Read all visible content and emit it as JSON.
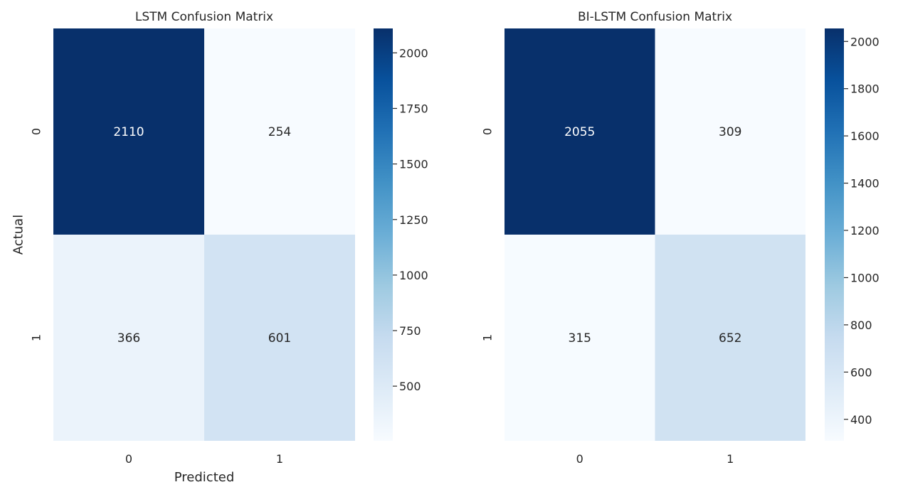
{
  "chart_data": [
    {
      "type": "heatmap",
      "title": "LSTM Confusion Matrix",
      "xlabel": "Predicted",
      "ylabel": "Actual",
      "x_categories": [
        "0",
        "1"
      ],
      "y_categories": [
        "0",
        "1"
      ],
      "values": [
        [
          2110,
          254
        ],
        [
          366,
          601
        ]
      ],
      "annotations": [
        "2110",
        "254",
        "366",
        "601"
      ],
      "colormap": "Blues",
      "colorbar": {
        "ticks": [
          500,
          750,
          1000,
          1250,
          1500,
          1750,
          2000
        ],
        "tick_labels": [
          "500",
          "750",
          "1000",
          "1250",
          "1500",
          "1750",
          "2000"
        ]
      }
    },
    {
      "type": "heatmap",
      "title": "BI-LSTM Confusion Matrix",
      "xlabel": "",
      "ylabel": "",
      "x_categories": [
        "0",
        "1"
      ],
      "y_categories": [
        "0",
        "1"
      ],
      "values": [
        [
          2055,
          309
        ],
        [
          315,
          652
        ]
      ],
      "annotations": [
        "2055",
        "309",
        "315",
        "652"
      ],
      "colormap": "Blues",
      "colorbar": {
        "ticks": [
          400,
          600,
          800,
          1000,
          1200,
          1400,
          1600,
          1800,
          2000
        ],
        "tick_labels": [
          "400",
          "600",
          "800",
          "1000",
          "1200",
          "1400",
          "1600",
          "1800",
          "2000"
        ]
      }
    }
  ]
}
